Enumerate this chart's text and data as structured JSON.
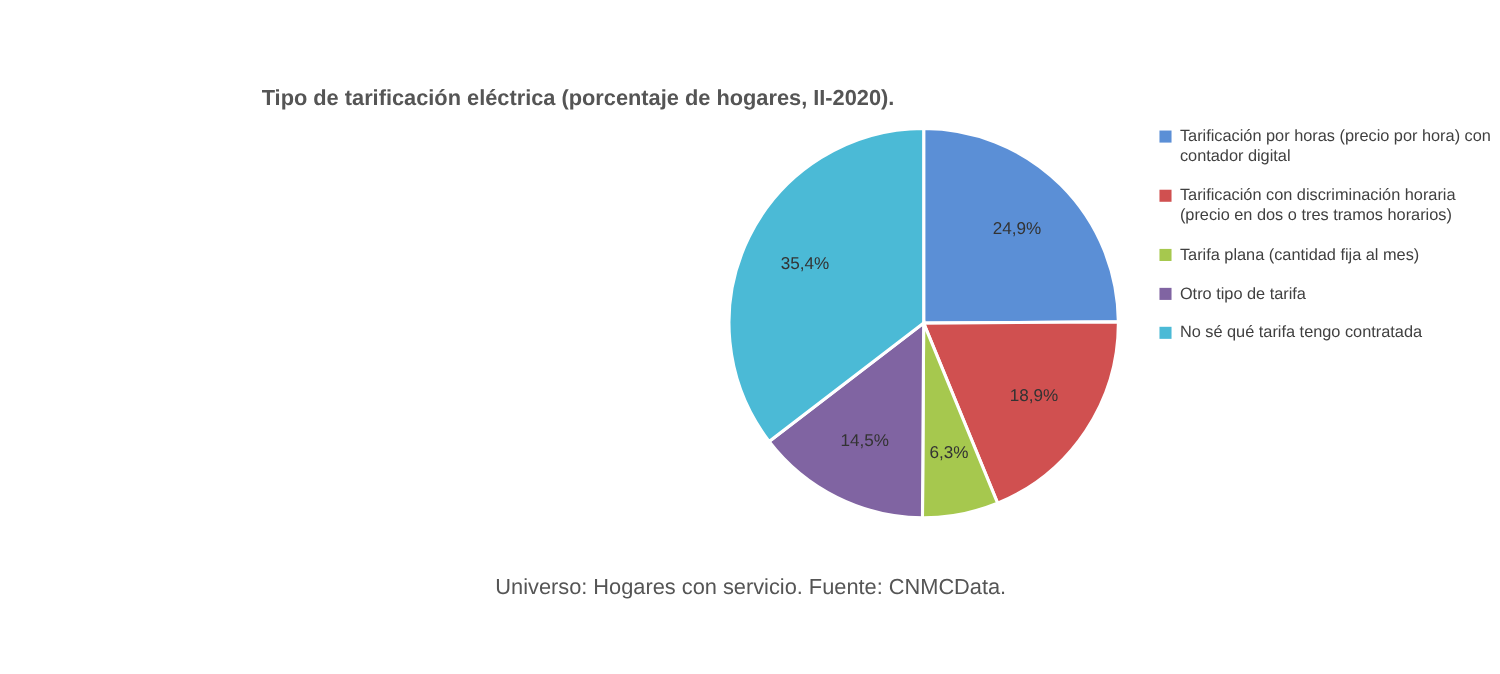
{
  "chart_data": {
    "type": "pie",
    "title": "Tipo de tarificación eléctrica (porcentaje de hogares, II-2020).",
    "categories": [
      "Tarificación por horas (precio por hora) con contador digital",
      "Tarificación con discriminación horaria (precio en dos o tres tramos horarios)",
      "Tarifa plana (cantidad fija al mes)",
      "Otro tipo de tarifa",
      "No sé qué tarifa tengo contratada"
    ],
    "values": [
      24.9,
      18.9,
      6.3,
      14.5,
      35.4
    ],
    "colors": [
      "#5b8fd6",
      "#d05050",
      "#a6c84e",
      "#8064a2",
      "#4bbad6"
    ],
    "value_labels": [
      "24,9%",
      "18,9%",
      "6,3%",
      "14,5%",
      "35,4%"
    ],
    "legend": "right",
    "annotations": [
      "Universo: Hogares con servicio. Fuente: CNMCData."
    ]
  }
}
